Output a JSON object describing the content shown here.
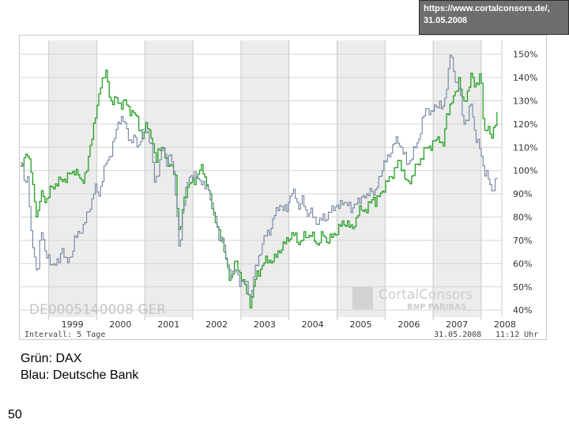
{
  "source_note": "https://www.cortalconsors.de/,\n31.05.2008",
  "caption": {
    "line1": "Grün: DAX",
    "line2": "Blau: Deutsche Bank"
  },
  "page_number": "50",
  "chart_data": {
    "type": "line",
    "watermark": {
      "isin": "DE0005140008",
      "exchange": "GER",
      "logo": "CortalConsors",
      "logo_sub": "BNP PARIBAS"
    },
    "x_tick_labels": [
      "1999",
      "2000",
      "2001",
      "2002",
      "2003",
      "2004",
      "2005",
      "2006",
      "2007",
      "2008"
    ],
    "y_tick_labels": [
      "150%",
      "140%",
      "130%",
      "120%",
      "110%",
      "100%",
      "90%",
      "80%",
      "70%",
      "60%",
      "50%",
      "40%"
    ],
    "y_ticks": [
      150,
      140,
      130,
      120,
      110,
      100,
      90,
      80,
      70,
      60,
      50,
      40
    ],
    "ylim": [
      37,
      156
    ],
    "xlim": [
      "1998-06-01",
      "2008-06-06"
    ],
    "shaded_years": [
      1999,
      2001,
      2003,
      2005,
      2007
    ],
    "footer_left": "Intervall: 5 Tage",
    "footer_date": "31.05.2008",
    "footer_time": "11:12 Uhr",
    "grid": true,
    "series": [
      {
        "color": "#22a022",
        "points": [
          [
            "1998-06-01",
            100
          ],
          [
            "1998-07-20",
            110
          ],
          [
            "1998-08-20",
            99
          ],
          [
            "1998-09-10",
            88
          ],
          [
            "1998-10-05",
            79
          ],
          [
            "1998-11-01",
            90
          ],
          [
            "1998-12-15",
            88
          ],
          [
            "1999-01-15",
            92
          ],
          [
            "1999-03-01",
            94
          ],
          [
            "1999-05-01",
            97
          ],
          [
            "1999-07-15",
            100
          ],
          [
            "1999-09-01",
            95
          ],
          [
            "1999-10-15",
            100
          ],
          [
            "1999-12-01",
            118
          ],
          [
            "2000-01-01",
            125
          ],
          [
            "2000-02-01",
            138
          ],
          [
            "2000-03-07",
            143
          ],
          [
            "2000-04-15",
            130
          ],
          [
            "2000-05-20",
            130
          ],
          [
            "2000-07-01",
            128
          ],
          [
            "2000-08-01",
            130
          ],
          [
            "2000-09-15",
            126
          ],
          [
            "2000-11-01",
            122
          ],
          [
            "2000-12-15",
            113
          ],
          [
            "2001-01-15",
            122
          ],
          [
            "2001-02-20",
            114
          ],
          [
            "2001-03-22",
            103
          ],
          [
            "2001-04-15",
            110
          ],
          [
            "2001-05-20",
            108
          ],
          [
            "2001-07-01",
            104
          ],
          [
            "2001-08-20",
            97
          ],
          [
            "2001-09-21",
            69
          ],
          [
            "2001-10-15",
            85
          ],
          [
            "2001-11-15",
            93
          ],
          [
            "2001-12-15",
            95
          ],
          [
            "2002-01-15",
            96
          ],
          [
            "2002-03-15",
            101
          ],
          [
            "2002-04-15",
            95
          ],
          [
            "2002-06-15",
            80
          ],
          [
            "2002-07-24",
            70
          ],
          [
            "2002-08-15",
            70
          ],
          [
            "2002-10-09",
            52
          ],
          [
            "2002-11-15",
            62
          ],
          [
            "2002-12-20",
            54
          ],
          [
            "2003-01-15",
            54
          ],
          [
            "2003-02-15",
            47
          ],
          [
            "2003-03-12",
            43
          ],
          [
            "2003-04-15",
            53
          ],
          [
            "2003-05-15",
            55
          ],
          [
            "2003-06-15",
            60
          ],
          [
            "2003-08-01",
            62
          ],
          [
            "2003-09-15",
            62
          ],
          [
            "2003-10-15",
            65
          ],
          [
            "2003-11-15",
            67
          ],
          [
            "2003-12-31",
            72
          ],
          [
            "2004-02-01",
            73
          ],
          [
            "2004-03-24",
            68
          ],
          [
            "2004-05-01",
            72
          ],
          [
            "2004-06-15",
            73
          ],
          [
            "2004-08-06",
            68
          ],
          [
            "2004-09-15",
            72
          ],
          [
            "2004-10-15",
            70
          ],
          [
            "2004-12-31",
            74
          ],
          [
            "2005-02-01",
            76
          ],
          [
            "2005-03-15",
            78
          ],
          [
            "2005-04-20",
            75
          ],
          [
            "2005-06-15",
            82
          ],
          [
            "2005-07-15",
            83
          ],
          [
            "2005-08-15",
            83
          ],
          [
            "2005-10-01",
            90
          ],
          [
            "2005-10-20",
            86
          ],
          [
            "2005-12-31",
            93
          ],
          [
            "2006-02-01",
            97
          ],
          [
            "2006-04-20",
            104
          ],
          [
            "2006-06-13",
            94
          ],
          [
            "2006-07-15",
            97
          ],
          [
            "2006-08-15",
            101
          ],
          [
            "2006-10-01",
            105
          ],
          [
            "2006-11-15",
            110
          ],
          [
            "2007-01-01",
            112
          ],
          [
            "2007-02-15",
            115
          ],
          [
            "2007-03-14",
            108
          ],
          [
            "2007-04-15",
            125
          ],
          [
            "2007-06-15",
            133
          ],
          [
            "2007-07-16",
            140
          ],
          [
            "2007-08-16",
            127
          ],
          [
            "2007-09-15",
            133
          ],
          [
            "2007-10-15",
            141
          ],
          [
            "2007-11-15",
            137
          ],
          [
            "2007-12-28",
            141
          ],
          [
            "2008-01-22",
            115
          ],
          [
            "2008-02-15",
            120
          ],
          [
            "2008-03-17",
            113
          ],
          [
            "2008-04-15",
            122
          ],
          [
            "2008-05-15",
            128
          ],
          [
            "2008-05-31",
            124
          ]
        ]
      },
      {
        "color": "#7083a0",
        "points": [
          [
            "1998-06-01",
            103
          ],
          [
            "1998-07-01",
            96
          ],
          [
            "1998-07-25",
            97
          ],
          [
            "1998-08-20",
            72
          ],
          [
            "1998-09-15",
            64
          ],
          [
            "1998-10-05",
            53
          ],
          [
            "1998-10-20",
            65
          ],
          [
            "1998-11-10",
            75
          ],
          [
            "1998-12-01",
            66
          ],
          [
            "1998-12-20",
            63
          ],
          [
            "1999-01-15",
            60
          ],
          [
            "1999-02-15",
            61
          ],
          [
            "1999-03-15",
            59
          ],
          [
            "1999-04-15",
            67
          ],
          [
            "1999-05-15",
            60
          ],
          [
            "1999-06-15",
            63
          ],
          [
            "1999-07-15",
            71
          ],
          [
            "1999-08-15",
            72
          ],
          [
            "1999-09-15",
            75
          ],
          [
            "1999-10-15",
            80
          ],
          [
            "1999-11-15",
            86
          ],
          [
            "1999-12-15",
            93
          ],
          [
            "2000-01-15",
            89
          ],
          [
            "2000-02-15",
            97
          ],
          [
            "2000-03-15",
            104
          ],
          [
            "2000-04-15",
            108
          ],
          [
            "2000-05-15",
            114
          ],
          [
            "2000-06-15",
            122
          ],
          [
            "2000-07-15",
            121
          ],
          [
            "2000-08-15",
            118
          ],
          [
            "2000-09-15",
            112
          ],
          [
            "2000-10-15",
            115
          ],
          [
            "2000-11-15",
            110
          ],
          [
            "2000-12-15",
            116
          ],
          [
            "2001-01-15",
            118
          ],
          [
            "2001-02-15",
            111
          ],
          [
            "2001-03-15",
            96
          ],
          [
            "2001-04-15",
            100
          ],
          [
            "2001-05-15",
            110
          ],
          [
            "2001-06-15",
            104
          ],
          [
            "2001-07-15",
            107
          ],
          [
            "2001-08-15",
            97
          ],
          [
            "2001-09-21",
            62
          ],
          [
            "2001-10-15",
            83
          ],
          [
            "2001-11-15",
            95
          ],
          [
            "2001-12-15",
            97
          ],
          [
            "2002-01-15",
            100
          ],
          [
            "2002-02-15",
            94
          ],
          [
            "2002-03-15",
            95
          ],
          [
            "2002-04-15",
            92
          ],
          [
            "2002-05-15",
            88
          ],
          [
            "2002-06-15",
            82
          ],
          [
            "2002-07-15",
            70
          ],
          [
            "2002-08-15",
            71
          ],
          [
            "2002-09-15",
            58
          ],
          [
            "2002-10-09",
            56
          ],
          [
            "2002-11-15",
            58
          ],
          [
            "2002-12-20",
            52
          ],
          [
            "2003-01-15",
            52
          ],
          [
            "2003-02-15",
            50
          ],
          [
            "2003-03-12",
            46
          ],
          [
            "2003-04-15",
            57
          ],
          [
            "2003-05-15",
            63
          ],
          [
            "2003-06-15",
            68
          ],
          [
            "2003-07-15",
            73
          ],
          [
            "2003-08-15",
            75
          ],
          [
            "2003-09-15",
            82
          ],
          [
            "2003-10-15",
            86
          ],
          [
            "2003-11-15",
            82
          ],
          [
            "2003-12-15",
            84
          ],
          [
            "2004-01-15",
            90
          ],
          [
            "2004-02-15",
            91
          ],
          [
            "2004-03-15",
            84
          ],
          [
            "2004-04-15",
            87
          ],
          [
            "2004-05-15",
            81
          ],
          [
            "2004-06-15",
            82
          ],
          [
            "2004-07-15",
            80
          ],
          [
            "2004-08-15",
            77
          ],
          [
            "2004-09-15",
            80
          ],
          [
            "2004-10-15",
            79
          ],
          [
            "2004-11-15",
            83
          ],
          [
            "2004-12-15",
            86
          ],
          [
            "2005-01-15",
            84
          ],
          [
            "2005-02-15",
            87
          ],
          [
            "2005-03-15",
            85
          ],
          [
            "2005-04-15",
            83
          ],
          [
            "2005-05-15",
            87
          ],
          [
            "2005-06-15",
            86
          ],
          [
            "2005-07-15",
            90
          ],
          [
            "2005-08-15",
            87
          ],
          [
            "2005-09-15",
            93
          ],
          [
            "2005-10-15",
            90
          ],
          [
            "2005-11-15",
            97
          ],
          [
            "2005-12-15",
            102
          ],
          [
            "2006-01-15",
            104
          ],
          [
            "2006-02-15",
            109
          ],
          [
            "2006-03-15",
            113
          ],
          [
            "2006-04-15",
            113
          ],
          [
            "2006-05-15",
            108
          ],
          [
            "2006-06-15",
            102
          ],
          [
            "2006-07-15",
            105
          ],
          [
            "2006-08-15",
            110
          ],
          [
            "2006-09-15",
            115
          ],
          [
            "2006-10-15",
            122
          ],
          [
            "2006-11-15",
            127
          ],
          [
            "2006-12-15",
            124
          ],
          [
            "2007-01-15",
            128
          ],
          [
            "2007-02-15",
            130
          ],
          [
            "2007-03-15",
            125
          ],
          [
            "2007-04-15",
            137
          ],
          [
            "2007-05-09",
            150
          ],
          [
            "2007-06-15",
            140
          ],
          [
            "2007-07-15",
            137
          ],
          [
            "2007-08-16",
            120
          ],
          [
            "2007-09-15",
            122
          ],
          [
            "2007-10-15",
            128
          ],
          [
            "2007-11-15",
            116
          ],
          [
            "2007-12-15",
            111
          ],
          [
            "2008-01-22",
            100
          ],
          [
            "2008-02-15",
            98
          ],
          [
            "2008-03-17",
            90
          ],
          [
            "2008-04-15",
            96
          ],
          [
            "2008-05-15",
            100
          ],
          [
            "2008-05-31",
            88
          ]
        ]
      }
    ]
  }
}
